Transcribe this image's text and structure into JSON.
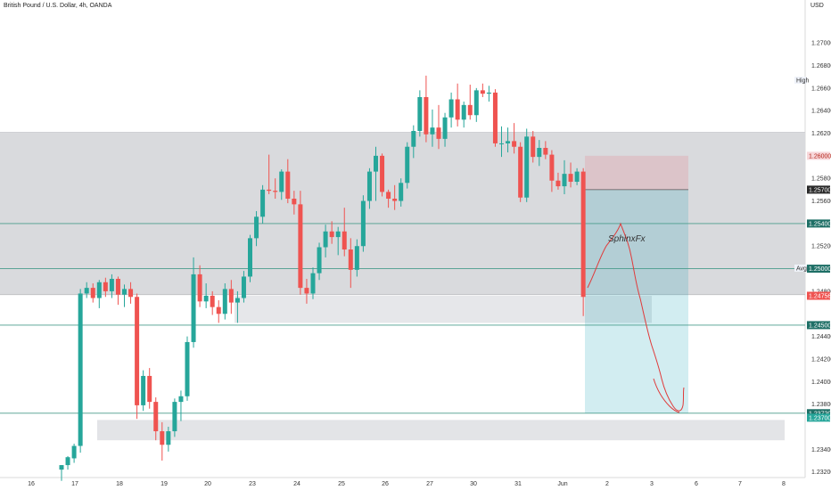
{
  "header": {
    "symbol_title": "British Pound / U.S. Dollar, 4h, OANDA",
    "currency": "USD"
  },
  "chart_data": {
    "type": "candlestick",
    "title": "British Pound / U.S. Dollar, 4h, OANDA",
    "ylim": [
      1.2315,
      1.2738
    ],
    "y_ticks": [
      "1.27000",
      "1.26800",
      "1.26600",
      "1.26400",
      "1.26200",
      "1.25800",
      "1.25600",
      "1.25200",
      "1.25005",
      "1.24800",
      "1.24400",
      "1.24200",
      "1.24000",
      "1.23800",
      "1.23400",
      "1.23200"
    ],
    "x_ticks": [
      "16",
      "17",
      "18",
      "19",
      "20",
      "23",
      "24",
      "25",
      "26",
      "27",
      "30",
      "31",
      "Jun",
      "2",
      "3",
      "6",
      "7",
      "8"
    ],
    "candles": [
      {
        "o": 1.2322,
        "h": 1.2326,
        "l": 1.2312,
        "c": 1.2326
      },
      {
        "o": 1.2326,
        "h": 1.2334,
        "l": 1.2322,
        "c": 1.2333
      },
      {
        "o": 1.2332,
        "h": 1.2345,
        "l": 1.2328,
        "c": 1.2343
      },
      {
        "o": 1.2343,
        "h": 1.2482,
        "l": 1.2337,
        "c": 1.2478
      },
      {
        "o": 1.2478,
        "h": 1.2488,
        "l": 1.2474,
        "c": 1.2483
      },
      {
        "o": 1.2483,
        "h": 1.2487,
        "l": 1.247,
        "c": 1.2474
      },
      {
        "o": 1.2474,
        "h": 1.249,
        "l": 1.2465,
        "c": 1.2488
      },
      {
        "o": 1.2488,
        "h": 1.2492,
        "l": 1.2475,
        "c": 1.248
      },
      {
        "o": 1.248,
        "h": 1.2495,
        "l": 1.2474,
        "c": 1.2491
      },
      {
        "o": 1.2491,
        "h": 1.2493,
        "l": 1.2468,
        "c": 1.2477
      },
      {
        "o": 1.2477,
        "h": 1.2486,
        "l": 1.2466,
        "c": 1.2482
      },
      {
        "o": 1.2482,
        "h": 1.2488,
        "l": 1.2469,
        "c": 1.2475
      },
      {
        "o": 1.2475,
        "h": 1.2478,
        "l": 1.2367,
        "c": 1.2379
      },
      {
        "o": 1.2379,
        "h": 1.241,
        "l": 1.2374,
        "c": 1.2405
      },
      {
        "o": 1.2405,
        "h": 1.2412,
        "l": 1.2376,
        "c": 1.2382
      },
      {
        "o": 1.2382,
        "h": 1.2386,
        "l": 1.2348,
        "c": 1.2356
      },
      {
        "o": 1.2356,
        "h": 1.2364,
        "l": 1.233,
        "c": 1.2344
      },
      {
        "o": 1.2344,
        "h": 1.236,
        "l": 1.2338,
        "c": 1.2356
      },
      {
        "o": 1.2356,
        "h": 1.2385,
        "l": 1.2351,
        "c": 1.2382
      },
      {
        "o": 1.2382,
        "h": 1.2392,
        "l": 1.2365,
        "c": 1.2387
      },
      {
        "o": 1.2387,
        "h": 1.244,
        "l": 1.2383,
        "c": 1.2435
      },
      {
        "o": 1.2435,
        "h": 1.251,
        "l": 1.243,
        "c": 1.2495
      },
      {
        "o": 1.2495,
        "h": 1.2503,
        "l": 1.2466,
        "c": 1.2471
      },
      {
        "o": 1.2471,
        "h": 1.2487,
        "l": 1.2465,
        "c": 1.2476
      },
      {
        "o": 1.2476,
        "h": 1.248,
        "l": 1.2459,
        "c": 1.2466
      },
      {
        "o": 1.2466,
        "h": 1.2472,
        "l": 1.2452,
        "c": 1.246
      },
      {
        "o": 1.246,
        "h": 1.2487,
        "l": 1.2455,
        "c": 1.2482
      },
      {
        "o": 1.2482,
        "h": 1.249,
        "l": 1.246,
        "c": 1.247
      },
      {
        "o": 1.247,
        "h": 1.248,
        "l": 1.2452,
        "c": 1.2474
      },
      {
        "o": 1.2474,
        "h": 1.2498,
        "l": 1.247,
        "c": 1.2493
      },
      {
        "o": 1.2493,
        "h": 1.253,
        "l": 1.2488,
        "c": 1.2527
      },
      {
        "o": 1.2527,
        "h": 1.2551,
        "l": 1.252,
        "c": 1.2546
      },
      {
        "o": 1.2546,
        "h": 1.2574,
        "l": 1.254,
        "c": 1.257
      },
      {
        "o": 1.257,
        "h": 1.2601,
        "l": 1.2566,
        "c": 1.2569
      },
      {
        "o": 1.2569,
        "h": 1.258,
        "l": 1.2562,
        "c": 1.2568
      },
      {
        "o": 1.2568,
        "h": 1.2588,
        "l": 1.2561,
        "c": 1.2586
      },
      {
        "o": 1.2586,
        "h": 1.2597,
        "l": 1.2558,
        "c": 1.2562
      },
      {
        "o": 1.2562,
        "h": 1.2569,
        "l": 1.2548,
        "c": 1.2557
      },
      {
        "o": 1.2557,
        "h": 1.2569,
        "l": 1.2477,
        "c": 1.2483
      },
      {
        "o": 1.2483,
        "h": 1.2491,
        "l": 1.2469,
        "c": 1.2478
      },
      {
        "o": 1.2478,
        "h": 1.2501,
        "l": 1.2473,
        "c": 1.2496
      },
      {
        "o": 1.2496,
        "h": 1.2523,
        "l": 1.249,
        "c": 1.2519
      },
      {
        "o": 1.2519,
        "h": 1.2539,
        "l": 1.251,
        "c": 1.2533
      },
      {
        "o": 1.2533,
        "h": 1.2542,
        "l": 1.2522,
        "c": 1.2528
      },
      {
        "o": 1.2528,
        "h": 1.2537,
        "l": 1.2512,
        "c": 1.2533
      },
      {
        "o": 1.2533,
        "h": 1.2554,
        "l": 1.2511,
        "c": 1.2517
      },
      {
        "o": 1.2517,
        "h": 1.2527,
        "l": 1.2483,
        "c": 1.2499
      },
      {
        "o": 1.2499,
        "h": 1.2526,
        "l": 1.2493,
        "c": 1.252
      },
      {
        "o": 1.252,
        "h": 1.2565,
        "l": 1.2515,
        "c": 1.256
      },
      {
        "o": 1.256,
        "h": 1.2589,
        "l": 1.2553,
        "c": 1.2586
      },
      {
        "o": 1.2586,
        "h": 1.2608,
        "l": 1.256,
        "c": 1.26
      },
      {
        "o": 1.26,
        "h": 1.2602,
        "l": 1.2564,
        "c": 1.2568
      },
      {
        "o": 1.2568,
        "h": 1.257,
        "l": 1.2554,
        "c": 1.2562
      },
      {
        "o": 1.2562,
        "h": 1.2574,
        "l": 1.2552,
        "c": 1.256
      },
      {
        "o": 1.256,
        "h": 1.258,
        "l": 1.2555,
        "c": 1.2576
      },
      {
        "o": 1.2576,
        "h": 1.2612,
        "l": 1.2571,
        "c": 1.2608
      },
      {
        "o": 1.2608,
        "h": 1.2627,
        "l": 1.2598,
        "c": 1.2622
      },
      {
        "o": 1.2622,
        "h": 1.2658,
        "l": 1.2617,
        "c": 1.2652
      },
      {
        "o": 1.2652,
        "h": 1.2671,
        "l": 1.2612,
        "c": 1.2619
      },
      {
        "o": 1.2619,
        "h": 1.2641,
        "l": 1.2608,
        "c": 1.2625
      },
      {
        "o": 1.2625,
        "h": 1.2645,
        "l": 1.2606,
        "c": 1.2615
      },
      {
        "o": 1.2615,
        "h": 1.2638,
        "l": 1.2608,
        "c": 1.2634
      },
      {
        "o": 1.2634,
        "h": 1.2656,
        "l": 1.2625,
        "c": 1.265
      },
      {
        "o": 1.265,
        "h": 1.2664,
        "l": 1.2626,
        "c": 1.2632
      },
      {
        "o": 1.2632,
        "h": 1.2648,
        "l": 1.2625,
        "c": 1.2645
      },
      {
        "o": 1.2645,
        "h": 1.2663,
        "l": 1.2632,
        "c": 1.2636
      },
      {
        "o": 1.2636,
        "h": 1.266,
        "l": 1.263,
        "c": 1.2658
      },
      {
        "o": 1.2658,
        "h": 1.2664,
        "l": 1.2652,
        "c": 1.2655
      },
      {
        "o": 1.2655,
        "h": 1.2662,
        "l": 1.2648,
        "c": 1.2656
      },
      {
        "o": 1.2656,
        "h": 1.2659,
        "l": 1.2608,
        "c": 1.2611
      },
      {
        "o": 1.2611,
        "h": 1.2626,
        "l": 1.2599,
        "c": 1.2611
      },
      {
        "o": 1.2611,
        "h": 1.2625,
        "l": 1.2603,
        "c": 1.2613
      },
      {
        "o": 1.2613,
        "h": 1.2629,
        "l": 1.2602,
        "c": 1.2608
      },
      {
        "o": 1.2608,
        "h": 1.2612,
        "l": 1.2559,
        "c": 1.2563
      },
      {
        "o": 1.2563,
        "h": 1.2624,
        "l": 1.2559,
        "c": 1.2617
      },
      {
        "o": 1.2617,
        "h": 1.2622,
        "l": 1.2594,
        "c": 1.2599
      },
      {
        "o": 1.2599,
        "h": 1.2614,
        "l": 1.2591,
        "c": 1.2607
      },
      {
        "o": 1.2607,
        "h": 1.2613,
        "l": 1.2597,
        "c": 1.2601
      },
      {
        "o": 1.2601,
        "h": 1.2605,
        "l": 1.2568,
        "c": 1.2578
      },
      {
        "o": 1.2578,
        "h": 1.2585,
        "l": 1.257,
        "c": 1.2573
      },
      {
        "o": 1.2573,
        "h": 1.2596,
        "l": 1.2566,
        "c": 1.2584
      },
      {
        "o": 1.2584,
        "h": 1.2594,
        "l": 1.2572,
        "c": 1.2577
      },
      {
        "o": 1.2577,
        "h": 1.2589,
        "l": 1.2574,
        "c": 1.2586
      },
      {
        "o": 1.2586,
        "h": 1.2589,
        "l": 1.2458,
        "c": 1.2475
      }
    ],
    "up_color": "#26a69a",
    "down_color": "#ef5350",
    "horizontal_lines": [
      {
        "price": 1.254,
        "label": "1.25400"
      },
      {
        "price": 1.25,
        "label": "1.25000"
      },
      {
        "price": 1.245,
        "label": "1.24500"
      },
      {
        "price": 1.2372,
        "label": "1.23720"
      }
    ],
    "zones": [
      {
        "from": 1.2477,
        "to": 1.2621,
        "color": "#d9dadd"
      },
      {
        "from": 1.2452,
        "to": 1.2476,
        "color": "#e6e7ea"
      },
      {
        "from": 1.2348,
        "to": 1.2366,
        "color": "#e3e4e7"
      }
    ],
    "position": {
      "entry": 1.257,
      "stop": 1.26,
      "target": 1.2372,
      "entry_label": "1.25700",
      "stop_label": "1.26000",
      "target_label": "1.23720"
    },
    "price_labels": [
      {
        "text": "1.23700",
        "price": 1.2368,
        "bg": "#26a69a",
        "fg": "#ffffff"
      },
      {
        "text": "1.24756",
        "price": 1.2476,
        "bg": "#ef5350",
        "fg": "#ffffff"
      }
    ],
    "side_tags": [
      {
        "text": "High",
        "price": 1.2667
      },
      {
        "text": "Avg",
        "price": 1.25005
      }
    ],
    "annotation": "SphinxFx",
    "drawing_color": "#e03a3a"
  }
}
